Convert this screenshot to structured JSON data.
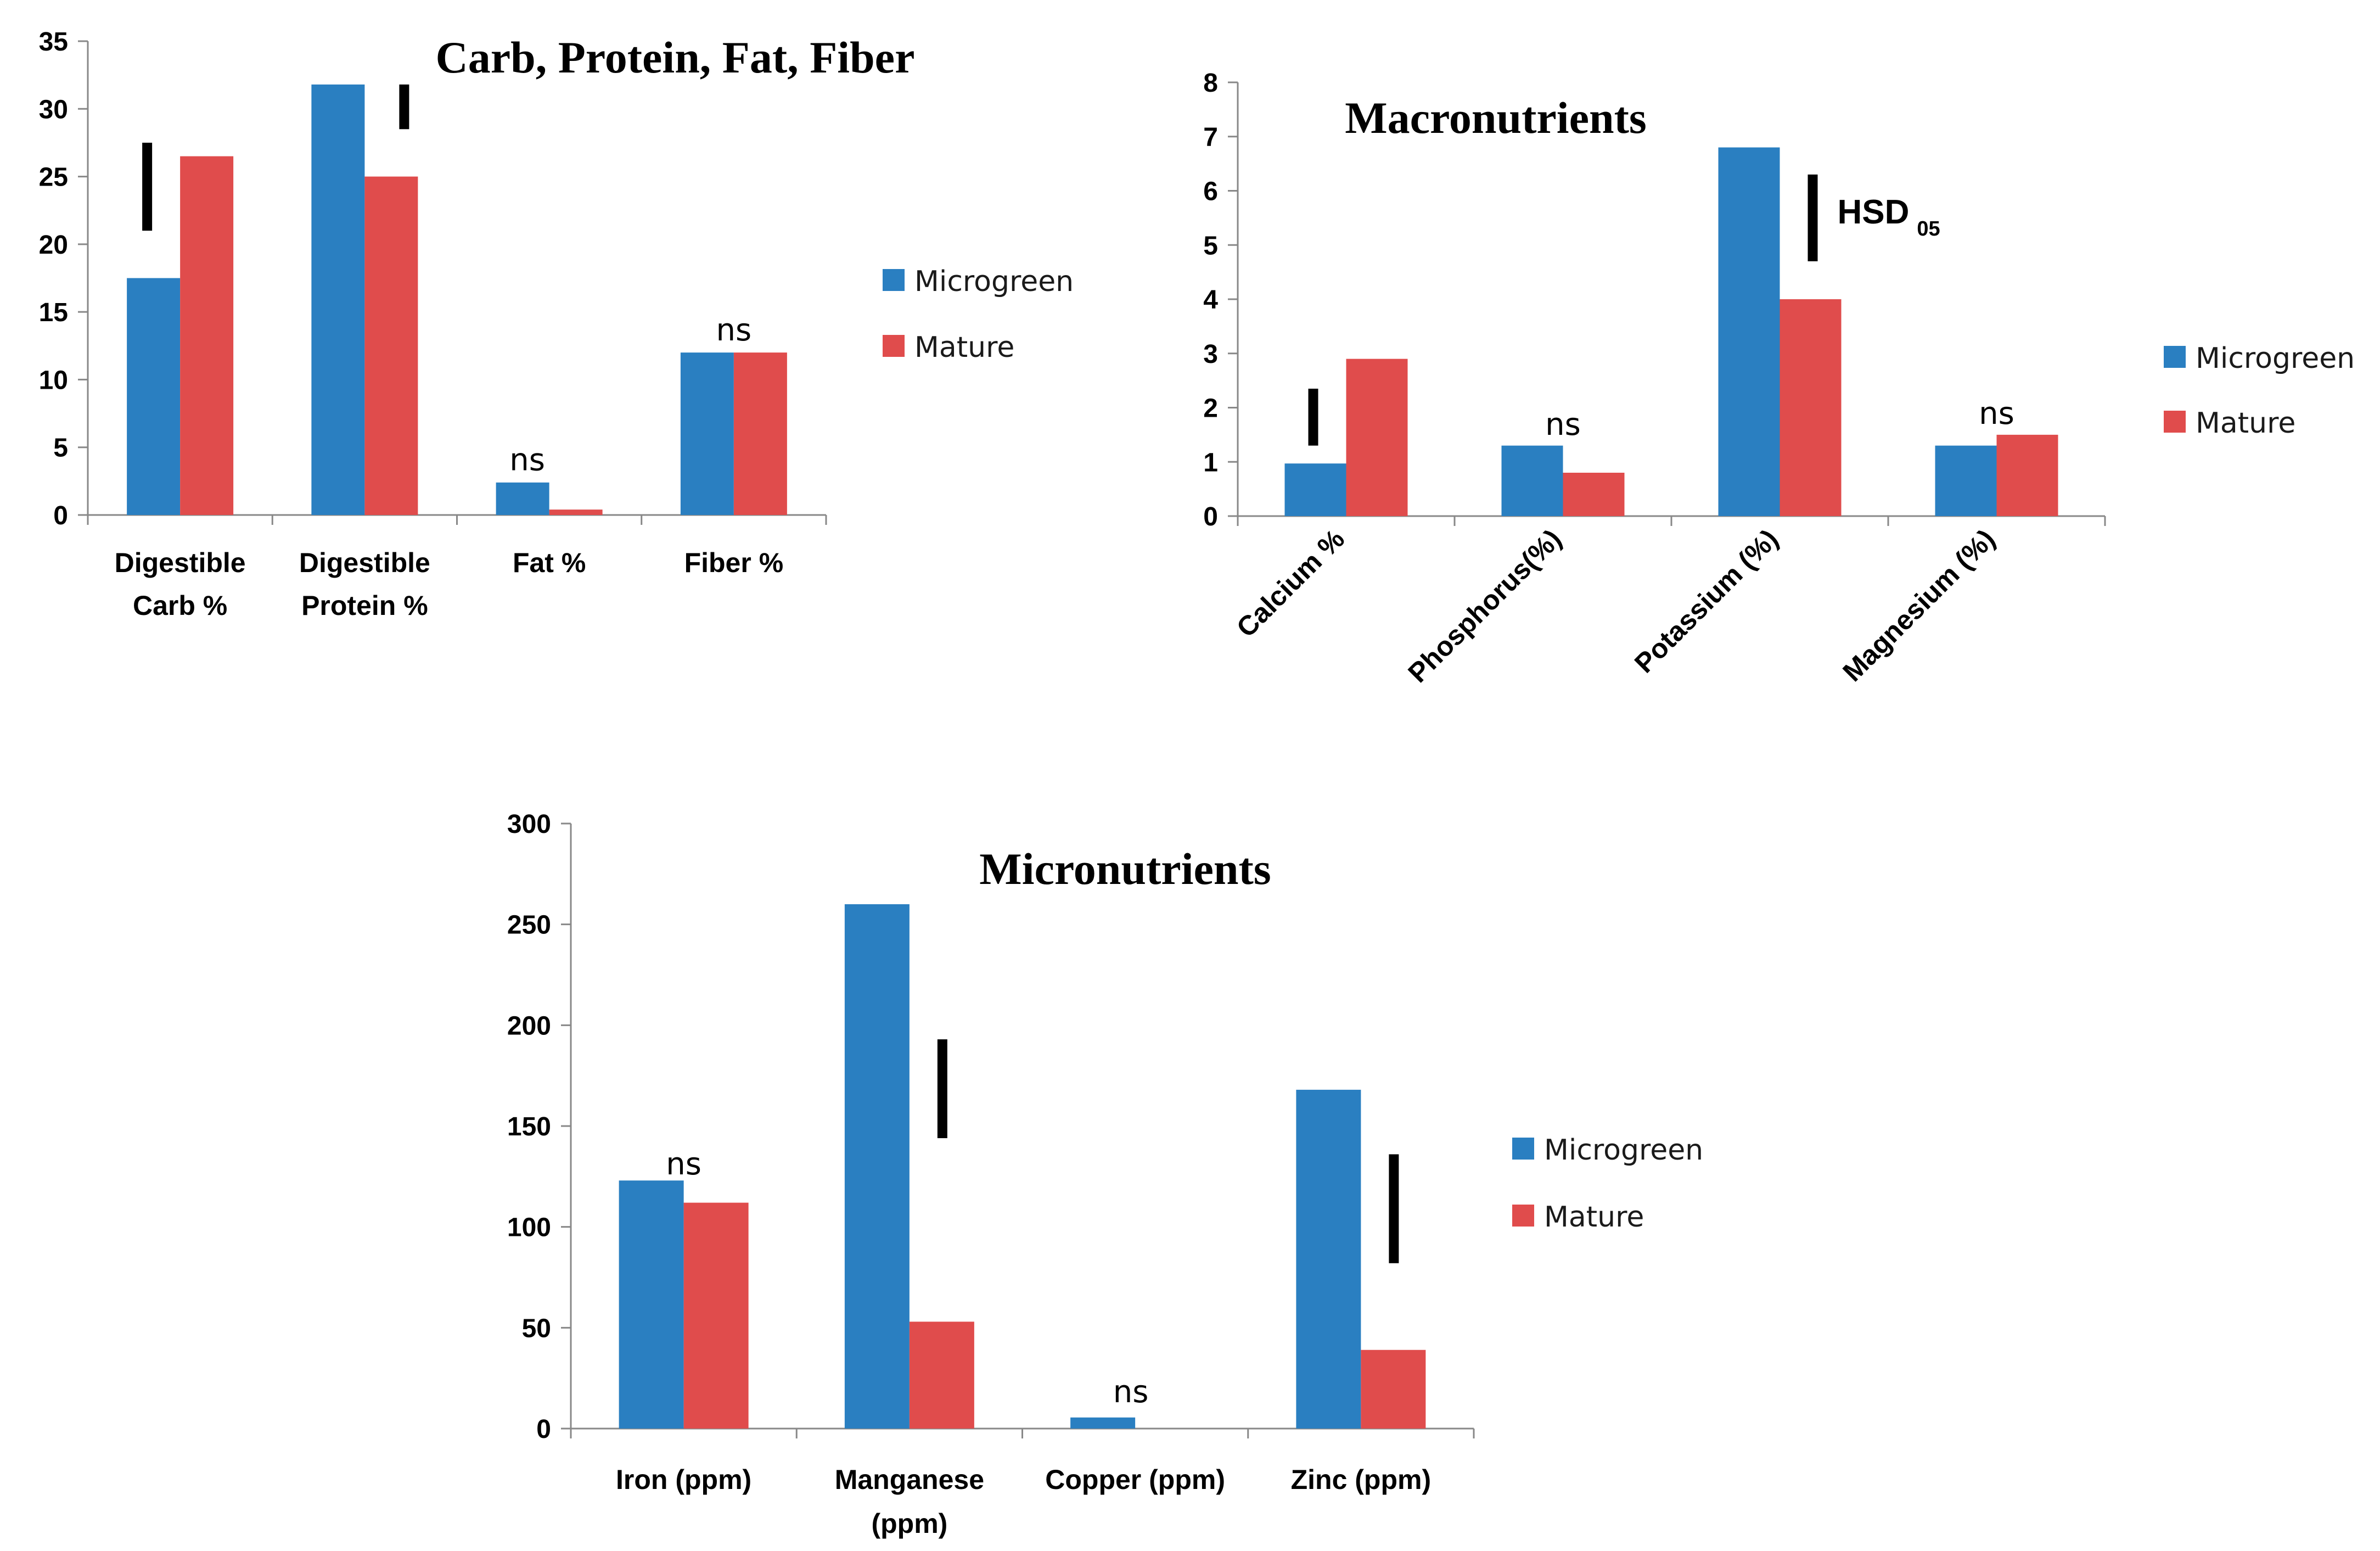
{
  "colors": {
    "microgreen": "#2a7fc1",
    "mature": "#e04c4c"
  },
  "chart_data": [
    {
      "id": "c1",
      "type": "bar",
      "title": "Carb, Protein, Fat, Fiber",
      "xlabel": "",
      "ylabel": "",
      "ylim": [
        0,
        35
      ],
      "yticks": [
        0,
        5,
        10,
        15,
        20,
        25,
        30,
        35
      ],
      "categories": [
        [
          "Digestible",
          "Carb %"
        ],
        [
          "Digestible",
          "Protein %"
        ],
        [
          "Fat %"
        ],
        [
          "Fiber %"
        ]
      ],
      "series": [
        {
          "name": "Microgreen",
          "values": [
            17.5,
            31.8,
            2.4,
            12.0
          ]
        },
        {
          "name": "Mature",
          "values": [
            26.5,
            25.0,
            0.4,
            12.0
          ]
        }
      ],
      "legend_position": "right",
      "annotations": [
        {
          "category": 0,
          "type": "hsd-bar",
          "y_from": 21.0,
          "y_to": 27.5
        },
        {
          "category": 1,
          "type": "hsd-bar",
          "y_from": 28.5,
          "y_to": 31.8
        },
        {
          "category": 2,
          "type": "text",
          "text": "ns",
          "y": 3.3
        },
        {
          "category": 3,
          "type": "text",
          "text": "ns",
          "y": 12.9
        }
      ]
    },
    {
      "id": "c2",
      "type": "bar",
      "title": "Macronutrients",
      "xlabel": "",
      "ylabel": "",
      "ylim": [
        0,
        8
      ],
      "yticks": [
        0,
        1,
        2,
        3,
        4,
        5,
        6,
        7,
        8
      ],
      "categories": [
        [
          "Calcium %"
        ],
        [
          "Phosphorus(%)"
        ],
        [
          "Potassium (%)"
        ],
        [
          "Magnesium (%)"
        ]
      ],
      "series": [
        {
          "name": "Microgreen",
          "values": [
            0.97,
            1.3,
            6.8,
            1.3
          ]
        },
        {
          "name": "Mature",
          "values": [
            2.9,
            0.8,
            4.0,
            1.5
          ]
        }
      ],
      "legend_position": "right",
      "annotations": [
        {
          "category": 0,
          "type": "hsd-bar",
          "y_from": 1.3,
          "y_to": 2.35
        },
        {
          "category": 1,
          "type": "text",
          "text": "ns",
          "y": 1.5
        },
        {
          "category": 2,
          "type": "hsd-bar",
          "y_from": 4.7,
          "y_to": 6.3
        },
        {
          "category": 2,
          "type": "hsd-label",
          "text": "HSD",
          "sub": "05",
          "y": 5.5
        },
        {
          "category": 3,
          "type": "text",
          "text": "ns",
          "y": 1.7
        }
      ]
    },
    {
      "id": "c3",
      "type": "bar",
      "title": "Micronutrients",
      "xlabel": "",
      "ylabel": "",
      "ylim": [
        0,
        300
      ],
      "yticks": [
        0,
        50,
        100,
        150,
        200,
        250,
        300
      ],
      "categories": [
        [
          "Iron (ppm)"
        ],
        [
          "Manganese",
          "(ppm)"
        ],
        [
          "Copper (ppm)"
        ],
        [
          "Zinc (ppm)"
        ]
      ],
      "series": [
        {
          "name": "Microgreen",
          "values": [
            123,
            260,
            5.5,
            168
          ]
        },
        {
          "name": "Mature",
          "values": [
            112,
            53,
            0,
            39
          ]
        }
      ],
      "legend_position": "right",
      "annotations": [
        {
          "category": 0,
          "type": "text",
          "text": "ns",
          "y": 126
        },
        {
          "category": 1,
          "type": "hsd-bar",
          "y_from": 144,
          "y_to": 193
        },
        {
          "category": 2,
          "type": "text",
          "text": "ns",
          "y": 13
        },
        {
          "category": 3,
          "type": "hsd-bar",
          "y_from": 82,
          "y_to": 136
        }
      ]
    }
  ]
}
